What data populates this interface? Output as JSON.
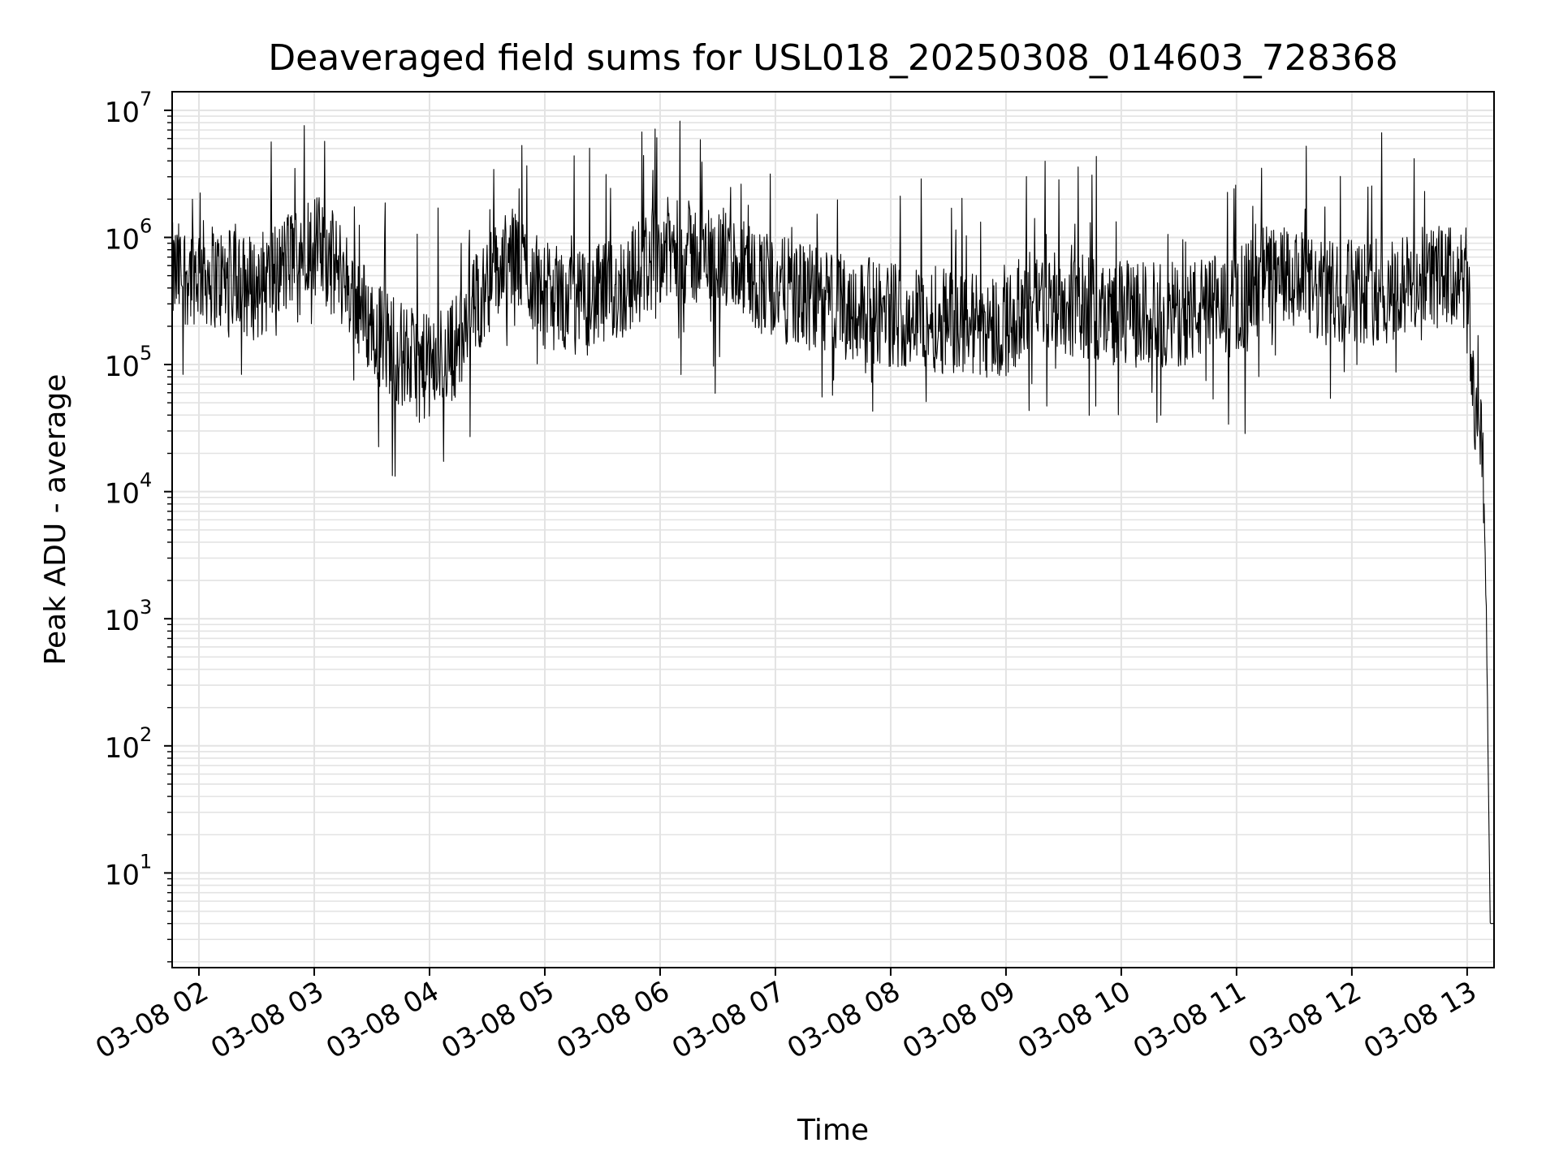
{
  "chart_data": {
    "type": "line",
    "title": "Deaveraged field sums for USL018_20250308_014603_728368",
    "xlabel": "Time",
    "ylabel": "Peak ADU - average",
    "yscale": "log",
    "ylim": [
      1.8,
      14000000
    ],
    "xlim": [
      "2025-03-08T01:46:03",
      "2025-03-08T13:14:00"
    ],
    "grid": true,
    "line_color": "#000000",
    "x_tick_labels": [
      "03-08 02",
      "03-08 03",
      "03-08 04",
      "03-08 05",
      "03-08 06",
      "03-08 07",
      "03-08 08",
      "03-08 09",
      "03-08 10",
      "03-08 11",
      "03-08 12",
      "03-08 13"
    ],
    "x_ticks": [
      "2025-03-08T02:00",
      "2025-03-08T03:00",
      "2025-03-08T04:00",
      "2025-03-08T05:00",
      "2025-03-08T06:00",
      "2025-03-08T07:00",
      "2025-03-08T08:00",
      "2025-03-08T09:00",
      "2025-03-08T10:00",
      "2025-03-08T11:00",
      "2025-03-08T12:00",
      "2025-03-08T13:00"
    ],
    "y_tick_labels": [
      {
        "base": "10",
        "exp": "1"
      },
      {
        "base": "10",
        "exp": "2"
      },
      {
        "base": "10",
        "exp": "3"
      },
      {
        "base": "10",
        "exp": "4"
      },
      {
        "base": "10",
        "exp": "5"
      },
      {
        "base": "10",
        "exp": "6"
      },
      {
        "base": "10",
        "exp": "7"
      }
    ],
    "y_ticks": [
      10,
      100,
      1000,
      10000,
      100000,
      1000000,
      10000000
    ],
    "series": [
      {
        "x": [
          "2025-03-08T01:46",
          "2025-03-08T02:00",
          "2025-03-08T02:15",
          "2025-03-08T02:30",
          "2025-03-08T02:45",
          "2025-03-08T02:55",
          "2025-03-08T03:00",
          "2025-03-08T03:15",
          "2025-03-08T03:30",
          "2025-03-08T03:45",
          "2025-03-08T04:00",
          "2025-03-08T04:15",
          "2025-03-08T04:30",
          "2025-03-08T04:45",
          "2025-03-08T05:00",
          "2025-03-08T05:20",
          "2025-03-08T05:40",
          "2025-03-08T06:00",
          "2025-03-08T06:30",
          "2025-03-08T07:00",
          "2025-03-08T07:30",
          "2025-03-08T08:00",
          "2025-03-08T08:30",
          "2025-03-08T09:00",
          "2025-03-08T09:15",
          "2025-03-08T09:30",
          "2025-03-08T10:00",
          "2025-03-08T10:30",
          "2025-03-08T11:00",
          "2025-03-08T11:15",
          "2025-03-08T11:30",
          "2025-03-08T11:45",
          "2025-03-08T12:00",
          "2025-03-08T12:20",
          "2025-03-08T12:40",
          "2025-03-08T13:00",
          "2025-03-08T13:04",
          "2025-03-08T13:08",
          "2025-03-08T13:10",
          "2025-03-08T13:12",
          "2025-03-08T13:14"
        ],
        "y": [
          500000,
          550000,
          450000,
          400000,
          600000,
          1000000,
          900000,
          500000,
          200000,
          120000,
          90000,
          150000,
          450000,
          700000,
          350000,
          300000,
          400000,
          800000,
          700000,
          400000,
          300000,
          250000,
          220000,
          200000,
          350000,
          300000,
          250000,
          250000,
          300000,
          500000,
          450000,
          350000,
          400000,
          350000,
          500000,
          450000,
          40000,
          30000,
          1000,
          4,
          4
        ]
      }
    ]
  }
}
